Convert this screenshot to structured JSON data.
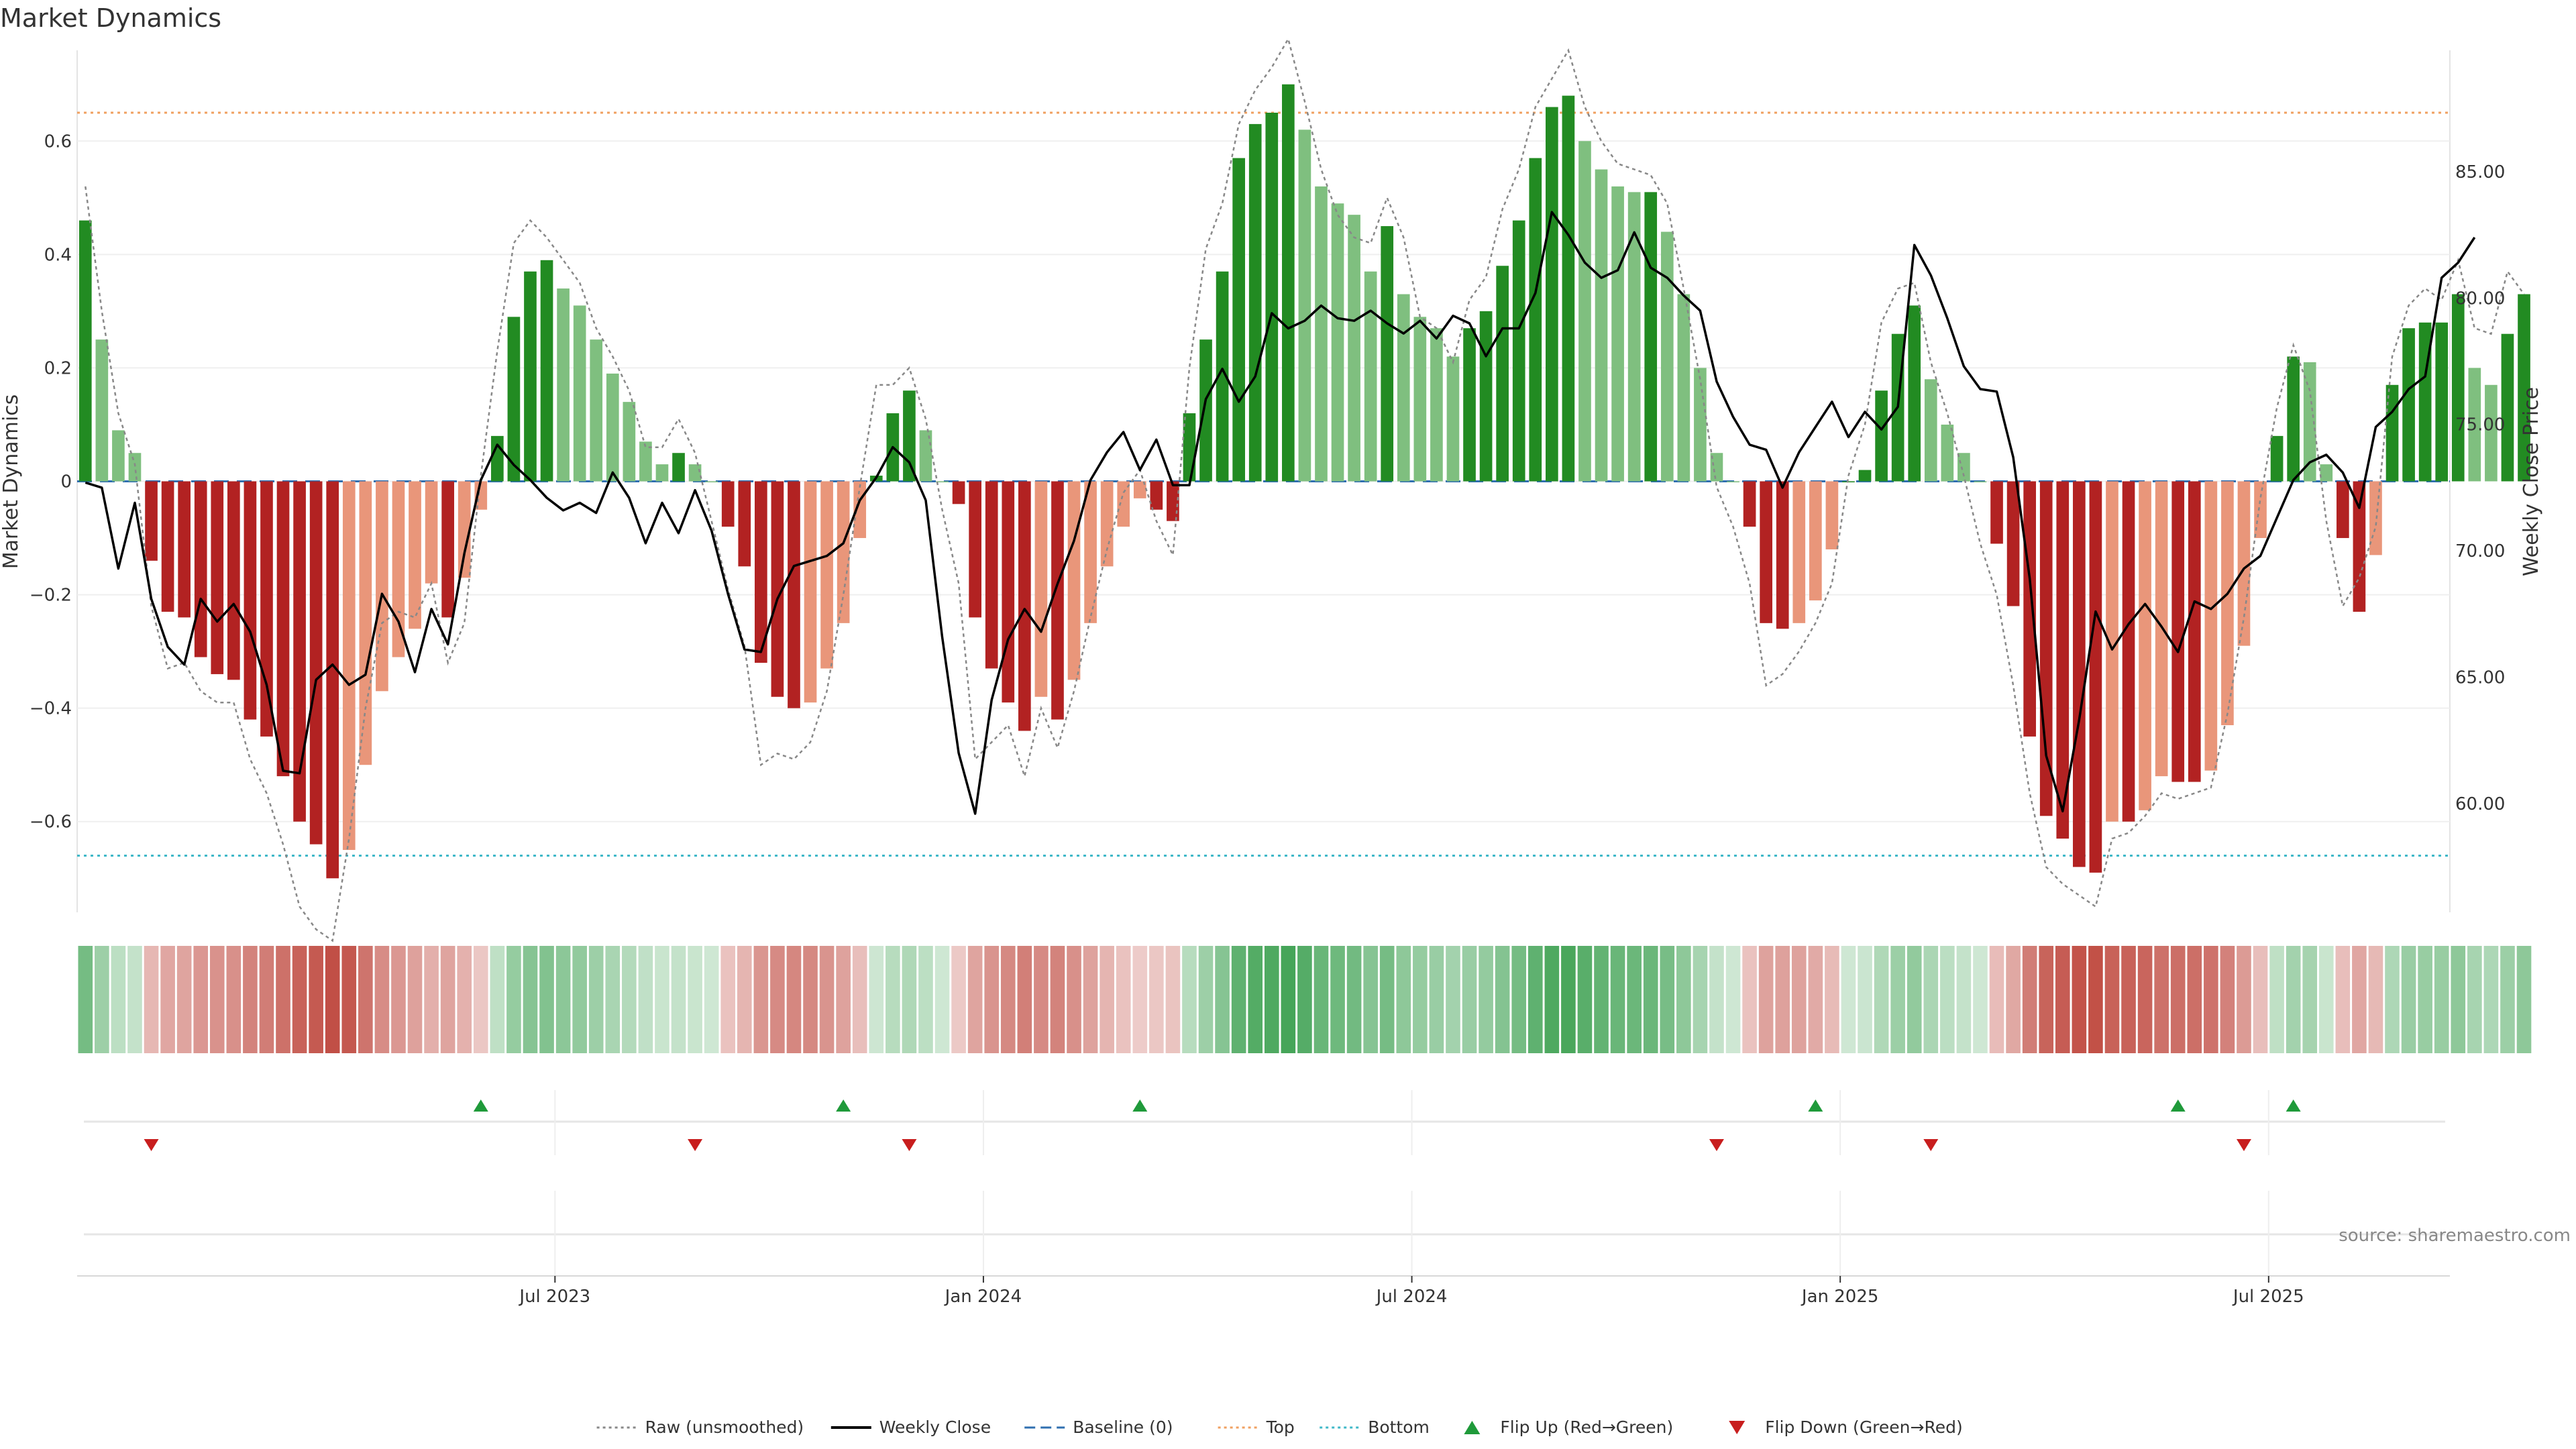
{
  "chart_data": {
    "type": "bar",
    "title": "Market Dynamics",
    "source": "source: sharemaestro.com",
    "y_left_label": "Market Dynamics",
    "y_right_label": "Weekly Close Price",
    "y_left_ticks": [
      "0.6",
      "0.4",
      "0.2",
      "0",
      "−0.2",
      "−0.4",
      "−0.6"
    ],
    "y_left_tick_values": [
      0.6,
      0.4,
      0.2,
      0,
      -0.2,
      -0.4,
      -0.6
    ],
    "y_left_range": [
      -0.76,
      0.76
    ],
    "y_right_ticks": [
      "85.00",
      "80.00",
      "75.00",
      "70.00",
      "65.00",
      "60.00"
    ],
    "y_right_tick_values": [
      85,
      80,
      75,
      70,
      65,
      60
    ],
    "y_right_range": [
      55.7,
      89.8
    ],
    "x_ticks": [
      "Jul 2023",
      "Jan 2024",
      "Jul 2024",
      "Jan 2025",
      "Jul 2025"
    ],
    "x_tick_weeks": [
      29,
      55,
      81,
      107,
      133
    ],
    "top_line": 0.65,
    "bottom_line": -0.66,
    "weeks": 144,
    "values": [
      0.46,
      0.25,
      0.09,
      0.05,
      -0.14,
      -0.23,
      -0.24,
      -0.31,
      -0.34,
      -0.35,
      -0.42,
      -0.45,
      -0.52,
      -0.6,
      -0.64,
      -0.7,
      -0.65,
      -0.5,
      -0.37,
      -0.31,
      -0.26,
      -0.18,
      -0.24,
      -0.17,
      -0.05,
      0.08,
      0.29,
      0.37,
      0.39,
      0.34,
      0.31,
      0.25,
      0.19,
      0.14,
      0.07,
      0.03,
      0.05,
      0.03,
      0,
      -0.08,
      -0.15,
      -0.32,
      -0.38,
      -0.4,
      -0.39,
      -0.33,
      -0.25,
      -0.1,
      0.01,
      0.12,
      0.16,
      0.09,
      0,
      -0.04,
      -0.24,
      -0.33,
      -0.39,
      -0.44,
      -0.38,
      -0.42,
      -0.35,
      -0.25,
      -0.15,
      -0.08,
      -0.03,
      -0.05,
      -0.07,
      0.12,
      0.25,
      0.37,
      0.57,
      0.63,
      0.65,
      0.7,
      0.62,
      0.52,
      0.49,
      0.47,
      0.37,
      0.45,
      0.33,
      0.29,
      0.27,
      0.22,
      0.27,
      0.3,
      0.38,
      0.46,
      0.57,
      0.66,
      0.68,
      0.6,
      0.55,
      0.52,
      0.51,
      0.51,
      0.44,
      0.33,
      0.2,
      0.05,
      0,
      -0.08,
      -0.25,
      -0.26,
      -0.25,
      -0.21,
      -0.12,
      0,
      0.02,
      0.16,
      0.26,
      0.31,
      0.18,
      0.1,
      0.05,
      0,
      -0.11,
      -0.22,
      -0.45,
      -0.59,
      -0.63,
      -0.68,
      -0.69,
      -0.6,
      -0.6,
      -0.58,
      -0.52,
      -0.53,
      -0.53,
      -0.51,
      -0.43,
      -0.29,
      -0.1,
      0.08,
      0.22,
      0.21,
      0.03,
      -0.1,
      -0.23,
      -0.13,
      0.17,
      0.27,
      0.28,
      0.28,
      0.33,
      0.2,
      0.17,
      0.26,
      0.33
    ],
    "weekly_close": [
      72.7,
      72.5,
      69.3,
      71.9,
      68.1,
      66.2,
      65.5,
      68.1,
      67.2,
      67.9,
      66.8,
      64.7,
      61.3,
      61.2,
      64.9,
      65.5,
      64.7,
      65.1,
      68.3,
      67.2,
      65.2,
      67.7,
      66.3,
      69.9,
      72.8,
      74.2,
      73.4,
      72.8,
      72.1,
      71.6,
      71.9,
      71.5,
      73.1,
      72.1,
      70.3,
      71.9,
      70.7,
      72.4,
      70.8,
      68.3,
      66.1,
      66.0,
      68.1,
      69.4,
      69.6,
      69.8,
      70.3,
      72.0,
      72.9,
      74.1,
      73.5,
      72.0,
      66.6,
      62.0,
      59.6,
      64.1,
      66.5,
      67.7,
      66.8,
      68.7,
      70.4,
      72.8,
      73.9,
      74.7,
      73.2,
      74.4,
      72.6,
      72.6,
      76.0,
      77.2,
      75.9,
      76.9,
      79.4,
      78.8,
      79.1,
      79.7,
      79.2,
      79.1,
      79.5,
      79.0,
      78.6,
      79.1,
      78.4,
      79.3,
      79.0,
      77.7,
      78.8,
      78.8,
      80.2,
      83.4,
      82.5,
      81.4,
      80.8,
      81.1,
      82.6,
      81.2,
      80.8,
      80.1,
      79.5,
      76.7,
      75.3,
      74.2,
      74.0,
      72.5,
      73.9,
      74.9,
      75.9,
      74.5,
      75.5,
      74.8,
      75.7,
      82.1,
      80.9,
      79.2,
      77.3,
      76.4,
      76.3,
      73.7,
      68.9,
      61.9,
      59.7,
      63.3,
      67.6,
      66.1,
      67.1,
      67.9,
      67.0,
      66.0,
      68.0,
      67.7,
      68.3,
      69.3,
      69.8,
      71.3,
      72.8,
      73.5,
      73.8,
      73.1,
      71.7,
      74.9,
      75.5,
      76.4,
      76.9,
      80.8,
      81.4,
      82.4
    ],
    "raw_offsets": [
      0.06,
      0.05,
      0.03,
      -0.02,
      -0.08,
      -0.1,
      -0.08,
      -0.06,
      -0.05,
      -0.04,
      -0.07,
      -0.1,
      -0.12,
      -0.15,
      -0.15,
      -0.11,
      0.02,
      0.1,
      0.12,
      0.08,
      0.02,
      0.0,
      -0.08,
      -0.08,
      0.06,
      0.15,
      0.13,
      0.09,
      0.04,
      0.05,
      0.04,
      0.02,
      0.03,
      0.02,
      -0.01,
      0.03,
      0.06,
      0.02,
      -0.07,
      -0.11,
      -0.14,
      -0.18,
      -0.1,
      -0.09,
      -0.07,
      -0.04,
      0.05,
      0.09,
      0.16,
      0.05,
      0.04,
      0.02,
      -0.05,
      -0.14,
      -0.25,
      -0.13,
      -0.04,
      -0.08,
      -0.02,
      -0.05,
      -0.02,
      0.01,
      0.03,
      0.06,
      0.05,
      -0.02,
      -0.06,
      0.08,
      0.16,
      0.12,
      0.06,
      0.06,
      0.08,
      0.08,
      0.05,
      0.03,
      -0.02,
      -0.04,
      0.05,
      0.05,
      0.1,
      0.0,
      0.0,
      -0.01,
      0.05,
      0.06,
      0.1,
      0.09,
      0.09,
      0.05,
      0.08,
      0.06,
      0.05,
      0.04,
      0.04,
      0.03,
      0.05,
      0.01,
      -0.02,
      -0.06,
      -0.08,
      -0.1,
      -0.11,
      -0.08,
      -0.05,
      -0.04,
      -0.06,
      0.01,
      0.08,
      0.12,
      0.08,
      0.04,
      0.03,
      0.02,
      -0.04,
      -0.11,
      -0.09,
      -0.14,
      -0.1,
      -0.09,
      -0.08,
      -0.05,
      -0.06,
      -0.03,
      -0.02,
      -0.01,
      -0.03,
      -0.03,
      -0.02,
      -0.03,
      0.02,
      0.05,
      0.07,
      0.05,
      0.02,
      -0.05,
      -0.1,
      -0.12,
      0.06,
      0.05,
      0.05,
      0.04,
      0.06,
      0.04,
      0.06,
      0.07,
      0.09,
      0.11
    ],
    "flip_up_weeks": [
      24,
      46,
      64,
      105,
      127,
      134
    ],
    "flip_down_weeks": [
      4,
      37,
      50,
      99,
      112,
      131
    ],
    "legend": [
      {
        "label": "Raw (unsmoothed)",
        "kind": "dotted-line",
        "color": "#888888"
      },
      {
        "label": "Weekly Close",
        "kind": "line",
        "color": "#000000"
      },
      {
        "label": "Baseline (0)",
        "kind": "dashed-line",
        "color": "#2f6fb0"
      },
      {
        "label": "Top",
        "kind": "dotted-line",
        "color": "#f0a060"
      },
      {
        "label": "Bottom",
        "kind": "dotted-line",
        "color": "#3fb8c8"
      },
      {
        "label": "Flip Up (Red→Green)",
        "kind": "triangle-up",
        "color": "#1f9a3a"
      },
      {
        "label": "Flip Down (Green→Red)",
        "kind": "triangle-down",
        "color": "#c81e1e"
      }
    ],
    "colors": {
      "green_strong": "#228b22",
      "green_light": "#7fbf7f",
      "red_strong": "#b22222",
      "red_light": "#e9967a",
      "raw": "#888888",
      "close": "#000000",
      "baseline": "#2f6fb0",
      "top": "#f0a060",
      "bottom": "#3fb8c8",
      "flip_up": "#1f9a3a",
      "flip_down": "#c81e1e"
    }
  }
}
